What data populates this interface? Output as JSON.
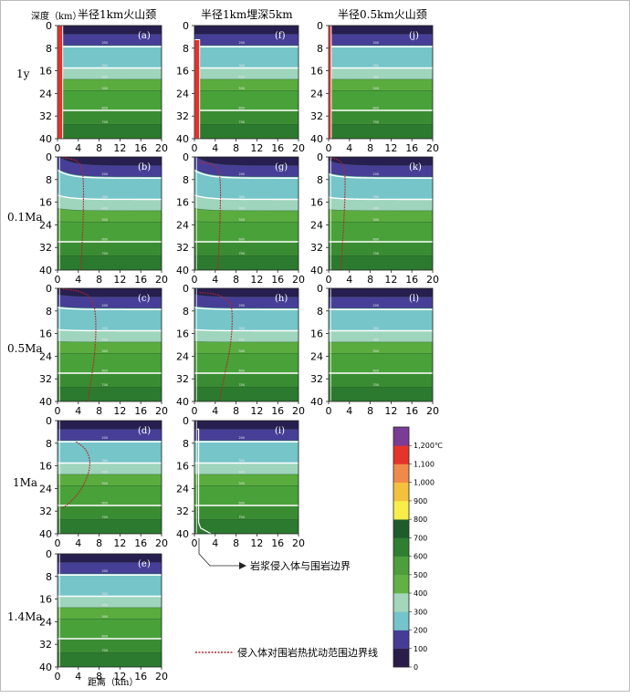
{
  "column_titles": [
    "半径1km火山颈",
    "半径1km埋深5km",
    "半径0.5km火山颈"
  ],
  "depth_label": "深度（km）",
  "distance_label": "距离（km）",
  "row_labels": [
    "1y",
    "0.1Ma",
    "0.5Ma",
    "1Ma",
    "1.4Ma"
  ],
  "boundary_annotation": "岩浆侵入体与围岩边界",
  "legend_line_label": "侵入体对围岩热扰动范围边界线",
  "colors": {
    "bands": [
      "#271f4f",
      "#473f97",
      "#75c5c9",
      "#9fd5bd",
      "#5aac3f",
      "#49a13a",
      "#3a8c33",
      "#2c7a2f",
      "#1e5e28"
    ],
    "scale": [
      "#2a1d4a",
      "#473c95",
      "#76c4cb",
      "#a3d6bb",
      "#63b146",
      "#4d9e3c",
      "#2f7f31",
      "#1f5b2b",
      "#f7ee4a",
      "#f4c13d",
      "#f08a4b",
      "#e5352b",
      "#7a3c94"
    ],
    "perturbation_line": "#b3262a",
    "intrusion": "#e4312b"
  },
  "chart_data": {
    "type": "heatmap",
    "x_label": "距离（km）",
    "y_label": "深度（km）",
    "xlim": [
      0,
      20
    ],
    "ylim": [
      40,
      0
    ],
    "x_ticks": [
      0,
      4,
      8,
      12,
      16,
      20
    ],
    "y_ticks": [
      0,
      8,
      16,
      24,
      32,
      40
    ],
    "isotherm_labels": [
      "100",
      "200",
      "300",
      "400",
      "500",
      "600",
      "700"
    ],
    "colorbar": {
      "unit": "℃",
      "ticks": [
        "0",
        "100",
        "200",
        "300",
        "400",
        "500",
        "600",
        "700",
        "800",
        "900",
        "1,000",
        "1,100",
        "1,200℃"
      ]
    },
    "panels": [
      {
        "id": "(a)",
        "column": 0,
        "time": "1y",
        "shallow_shift": 0,
        "isotherm_depths_km": [
          3,
          7,
          15,
          19,
          23,
          30,
          35
        ],
        "white_lines_km": [
          7.5,
          15,
          30
        ],
        "intrusion": {
          "radius_km": 1,
          "top_km": 0,
          "bottom_km": 40
        }
      },
      {
        "id": "(f)",
        "column": 1,
        "time": "1y",
        "shallow_shift": 0,
        "isotherm_depths_km": [
          3,
          7,
          15,
          19,
          23,
          30,
          35
        ],
        "white_lines_km": [
          7.5,
          15,
          30
        ],
        "intrusion": {
          "radius_km": 1,
          "top_km": 5,
          "bottom_km": 40
        }
      },
      {
        "id": "(j)",
        "column": 2,
        "time": "1y",
        "shallow_shift": 0,
        "isotherm_depths_km": [
          3,
          7,
          15,
          19,
          23,
          30,
          35
        ],
        "white_lines_km": [
          7.5,
          15,
          30
        ],
        "intrusion": {
          "radius_km": 0.5,
          "top_km": 0,
          "bottom_km": 40
        }
      },
      {
        "id": "(b)",
        "column": 0,
        "time": "0.1Ma",
        "shallow_shift": 4,
        "isotherm_depths_km": [
          3,
          7,
          15,
          19,
          23,
          30,
          35
        ],
        "white_lines_km": [
          7.5,
          15,
          30
        ],
        "perturbation_line": [
          [
            1,
            0.2
          ],
          [
            3.5,
            1
          ],
          [
            4.6,
            3
          ],
          [
            5,
            8
          ],
          [
            5,
            16
          ],
          [
            4.9,
            24
          ],
          [
            4.7,
            32
          ],
          [
            4.5,
            40
          ]
        ]
      },
      {
        "id": "(g)",
        "column": 1,
        "time": "0.1Ma",
        "shallow_shift": 4,
        "isotherm_depths_km": [
          3,
          7,
          15,
          19,
          23,
          30,
          35
        ],
        "white_lines_km": [
          7.5,
          15,
          30
        ],
        "perturbation_line": [
          [
            1,
            1.8
          ],
          [
            3.5,
            2.5
          ],
          [
            4.5,
            4
          ],
          [
            5,
            8
          ],
          [
            5,
            16
          ],
          [
            4.9,
            24
          ],
          [
            4.7,
            32
          ],
          [
            4.5,
            40
          ]
        ]
      },
      {
        "id": "(k)",
        "column": 2,
        "time": "0.1Ma",
        "shallow_shift": 2,
        "isotherm_depths_km": [
          3,
          7,
          15,
          19,
          23,
          30,
          35
        ],
        "white_lines_km": [
          7.5,
          15,
          30
        ],
        "perturbation_line": [
          [
            0.5,
            0.3
          ],
          [
            2.2,
            1.2
          ],
          [
            3,
            3.5
          ],
          [
            3.2,
            8
          ],
          [
            3.1,
            16
          ],
          [
            2.9,
            24
          ],
          [
            2.6,
            32
          ],
          [
            2.4,
            40
          ]
        ]
      },
      {
        "id": "(c)",
        "column": 0,
        "time": "0.5Ma",
        "shallow_shift": 1,
        "isotherm_depths_km": [
          3,
          7,
          15,
          19,
          23,
          30,
          35
        ],
        "white_lines_km": [
          7.5,
          15,
          30
        ],
        "perturbation_line": [
          [
            1,
            0.3
          ],
          [
            4,
            0.8
          ],
          [
            6.5,
            3
          ],
          [
            7.3,
            8
          ],
          [
            7.4,
            16
          ],
          [
            7.1,
            24
          ],
          [
            6.5,
            32
          ],
          [
            5.8,
            40
          ]
        ]
      },
      {
        "id": "(h)",
        "column": 1,
        "time": "0.5Ma",
        "shallow_shift": 1,
        "isotherm_depths_km": [
          3,
          7,
          15,
          19,
          23,
          30,
          35
        ],
        "white_lines_km": [
          7.5,
          15,
          30
        ],
        "perturbation_line": [
          [
            1,
            1.5
          ],
          [
            4.5,
            2
          ],
          [
            6.8,
            4.5
          ],
          [
            7.3,
            8
          ],
          [
            7.2,
            16
          ],
          [
            6.6,
            24
          ],
          [
            5.6,
            32
          ],
          [
            4.8,
            40
          ]
        ]
      },
      {
        "id": "(l)",
        "column": 2,
        "time": "0.5Ma",
        "shallow_shift": 0,
        "isotherm_depths_km": [
          3,
          7,
          15,
          19,
          23,
          30,
          35
        ],
        "white_lines_km": [
          7.5,
          15,
          30
        ]
      },
      {
        "id": "(d)",
        "column": 0,
        "time": "1Ma",
        "shallow_shift": 0,
        "isotherm_depths_km": [
          3,
          7,
          15,
          19,
          23,
          30,
          35
        ],
        "white_lines_km": [
          7.5,
          15,
          30
        ],
        "perturbation_line": [
          [
            3.6,
            7.5
          ],
          [
            5.5,
            10
          ],
          [
            6.3,
            14
          ],
          [
            6.1,
            18
          ],
          [
            5,
            23
          ],
          [
            3.5,
            27
          ],
          [
            2,
            29.5
          ],
          [
            1,
            31
          ]
        ]
      },
      {
        "id": "(i)",
        "column": 1,
        "time": "1Ma",
        "shallow_shift": 0,
        "isotherm_depths_km": [
          3,
          7,
          15,
          19,
          23,
          30,
          35
        ],
        "white_lines_km": [
          7.5,
          15,
          30
        ],
        "boundary_trace": [
          [
            0.5,
            3
          ],
          [
            0.8,
            3
          ],
          [
            0.8,
            36
          ],
          [
            1.2,
            38
          ],
          [
            3.2,
            40
          ]
        ]
      },
      {
        "id": "(e)",
        "column": 0,
        "time": "1.4Ma",
        "shallow_shift": 0,
        "isotherm_depths_km": [
          3,
          7,
          15,
          19,
          23,
          30,
          35
        ],
        "white_lines_km": [
          7.5,
          15,
          30
        ]
      }
    ]
  }
}
